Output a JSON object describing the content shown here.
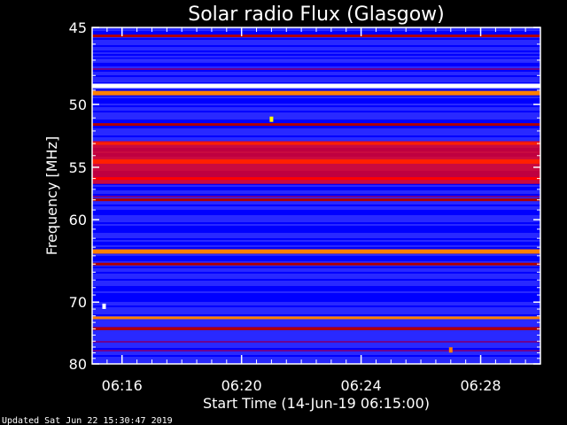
{
  "chart_data": {
    "type": "heatmap",
    "title": "Solar radio Flux (Glasgow)",
    "xlabel": "Start Time (14-Jun-19 06:15:00)",
    "ylabel": "Frequency [MHz]",
    "x_tick_labels": [
      "06:16",
      "06:20",
      "06:24",
      "06:28"
    ],
    "x_tick_minutes": [
      16,
      20,
      24,
      28
    ],
    "xlim_minutes": [
      15,
      30
    ],
    "y_tick_labels": [
      "45",
      "50",
      "55",
      "60",
      "70",
      "80"
    ],
    "y_tick_values": [
      45,
      50,
      55,
      60,
      70,
      80
    ],
    "ylim": [
      45,
      80
    ],
    "y_scale": "reciprocal",
    "colormap": [
      "#000090",
      "#0000ff",
      "#3030ff",
      "#800080",
      "#b00000",
      "#ff0000",
      "#ff8000",
      "#ffff00",
      "#ffffff"
    ],
    "frequency_bands": [
      {
        "freq": 45.5,
        "intensity": 0.45
      },
      {
        "freq": 47.0,
        "intensity": 0.3
      },
      {
        "freq": 48.7,
        "intensity": 0.98
      },
      {
        "freq": 49.2,
        "intensity": 0.75
      },
      {
        "freq": 51.5,
        "intensity": 0.55
      },
      {
        "freq": 53.0,
        "intensity": 0.7
      },
      {
        "freq": 54.5,
        "intensity": 0.8
      },
      {
        "freq": 56.0,
        "intensity": 0.65
      },
      {
        "freq": 58.0,
        "intensity": 0.5
      },
      {
        "freq": 63.5,
        "intensity": 0.78
      },
      {
        "freq": 65.0,
        "intensity": 0.45
      },
      {
        "freq": 72.3,
        "intensity": 0.7
      },
      {
        "freq": 74.0,
        "intensity": 0.55
      }
    ],
    "bursts": [
      {
        "minute": 21.0,
        "freq": 51.1,
        "intensity": 0.85
      },
      {
        "minute": 15.4,
        "freq": 70.6,
        "intensity": 1.0
      },
      {
        "minute": 27.0,
        "freq": 77.5,
        "intensity": 0.7
      }
    ],
    "footer": "Updated Sat Jun 22 15:30:47 2019"
  }
}
